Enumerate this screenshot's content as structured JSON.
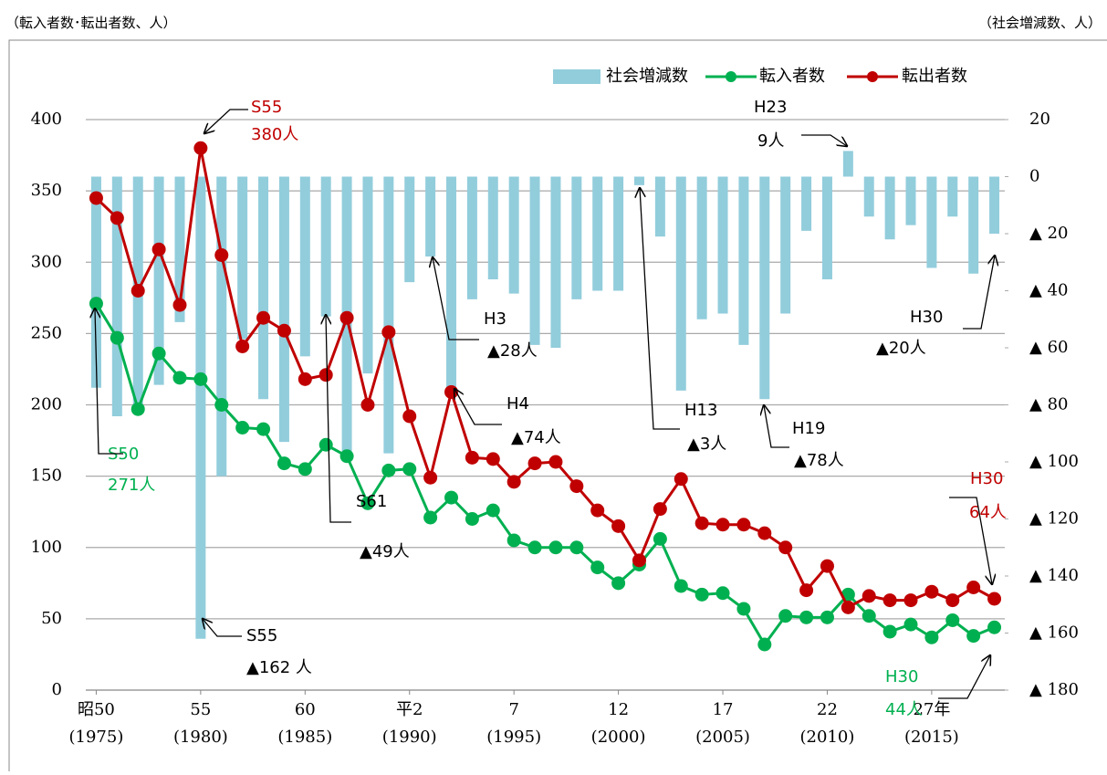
{
  "chart_data": {
    "type": "combo",
    "left_unit": "（転入者数･転出者数、人）",
    "right_unit": "（社会増減数、人）",
    "x": [
      1975,
      1976,
      1977,
      1978,
      1979,
      1980,
      1981,
      1982,
      1983,
      1984,
      1985,
      1986,
      1987,
      1988,
      1989,
      1990,
      1991,
      1992,
      1993,
      1994,
      1995,
      1996,
      1997,
      1998,
      1999,
      2000,
      2001,
      2002,
      2003,
      2004,
      2005,
      2006,
      2007,
      2008,
      2009,
      2010,
      2011,
      2012,
      2013,
      2014,
      2015,
      2016,
      2017,
      2018
    ],
    "xlim": [
      1974.5,
      2018.5
    ],
    "xticks": [
      {
        "value": 1975,
        "label": "昭50",
        "label2": "(1975)"
      },
      {
        "value": 1980,
        "label": "55",
        "label2": "(1980)"
      },
      {
        "value": 1985,
        "label": "60",
        "label2": "(1985)"
      },
      {
        "value": 1990,
        "label": "平2",
        "label2": "(1990)"
      },
      {
        "value": 1995,
        "label": "7",
        "label2": "(1995)"
      },
      {
        "value": 2000,
        "label": "12",
        "label2": "(2000)"
      },
      {
        "value": 2005,
        "label": "17",
        "label2": "(2005)"
      },
      {
        "value": 2010,
        "label": "22",
        "label2": "(2010)"
      },
      {
        "value": 2015,
        "label": "27年",
        "label2": "(2015)"
      }
    ],
    "ylim": [
      0,
      400
    ],
    "yticks": [
      0,
      50,
      100,
      150,
      200,
      250,
      300,
      350,
      400
    ],
    "y2lim": [
      -180,
      20
    ],
    "y2ticks": [
      20,
      0,
      {
        "value": -20,
        "label": "▲ 20"
      },
      {
        "value": -40,
        "label": "▲ 40"
      },
      {
        "value": -60,
        "label": "▲ 60"
      },
      {
        "value": -80,
        "label": "▲ 80"
      },
      {
        "value": -100,
        "label": "▲ 100"
      },
      {
        "value": -120,
        "label": "▲ 120"
      },
      {
        "value": -140,
        "label": "▲ 140"
      },
      {
        "value": -160,
        "label": "▲ 160"
      },
      {
        "value": -180,
        "label": "▲ 180"
      }
    ],
    "grid": true,
    "series": [
      {
        "name": "社会増減数",
        "type": "bar",
        "axis": "y2",
        "color": "#92cddc",
        "values": [
          -74,
          -84,
          -83,
          -73,
          -51,
          -162,
          -105,
          -57,
          -78,
          -93,
          -63,
          -49,
          -97,
          -69,
          -97,
          -37,
          -28,
          -74,
          -43,
          -36,
          -41,
          -59,
          -60,
          -43,
          -40,
          -40,
          -3,
          -21,
          -75,
          -50,
          -48,
          -59,
          -78,
          -48,
          -19,
          -36,
          9,
          -14,
          -22,
          -17,
          -32,
          -14,
          -34,
          -20
        ]
      },
      {
        "name": "転入者数",
        "type": "line",
        "color": "#00b050",
        "values": [
          271,
          247,
          197,
          236,
          219,
          218,
          200,
          184,
          183,
          159,
          155,
          172,
          164,
          131,
          154,
          155,
          121,
          135,
          120,
          126,
          105,
          100,
          100,
          100,
          86,
          75,
          88,
          106,
          73,
          67,
          68,
          57,
          32,
          52,
          51,
          51,
          67,
          52,
          41,
          46,
          37,
          49,
          38,
          44
        ]
      },
      {
        "name": "転出者数",
        "type": "line",
        "color": "#c00000",
        "values": [
          345,
          331,
          280,
          309,
          270,
          380,
          305,
          241,
          261,
          252,
          218,
          221,
          261,
          200,
          251,
          192,
          149,
          209,
          163,
          162,
          146,
          159,
          160,
          143,
          126,
          115,
          91,
          127,
          148,
          117,
          116,
          116,
          110,
          100,
          70,
          87,
          58,
          66,
          63,
          63,
          69,
          63,
          72,
          64
        ]
      }
    ],
    "annotations": [
      {
        "lines": [
          "S55",
          "380人"
        ],
        "color": "#c00000"
      },
      {
        "lines": [
          "S50",
          "271人"
        ],
        "color": "#00b050"
      },
      {
        "lines": [
          "S55",
          "▲162 人"
        ],
        "color": "#000000"
      },
      {
        "lines": [
          "S61",
          "▲49人"
        ],
        "color": "#000000"
      },
      {
        "lines": [
          "H3",
          "▲28人"
        ],
        "color": "#000000"
      },
      {
        "lines": [
          "H4",
          "▲74人"
        ],
        "color": "#000000"
      },
      {
        "lines": [
          "H13",
          "▲3人"
        ],
        "color": "#000000"
      },
      {
        "lines": [
          "H19",
          "▲78人"
        ],
        "color": "#000000"
      },
      {
        "lines": [
          "H23",
          "9人"
        ],
        "color": "#000000"
      },
      {
        "lines": [
          "H30",
          "▲20人"
        ],
        "color": "#000000"
      },
      {
        "lines": [
          "H30",
          "64人"
        ],
        "color": "#c00000"
      },
      {
        "lines": [
          "H30",
          "44人"
        ],
        "color": "#00b050"
      }
    ]
  }
}
